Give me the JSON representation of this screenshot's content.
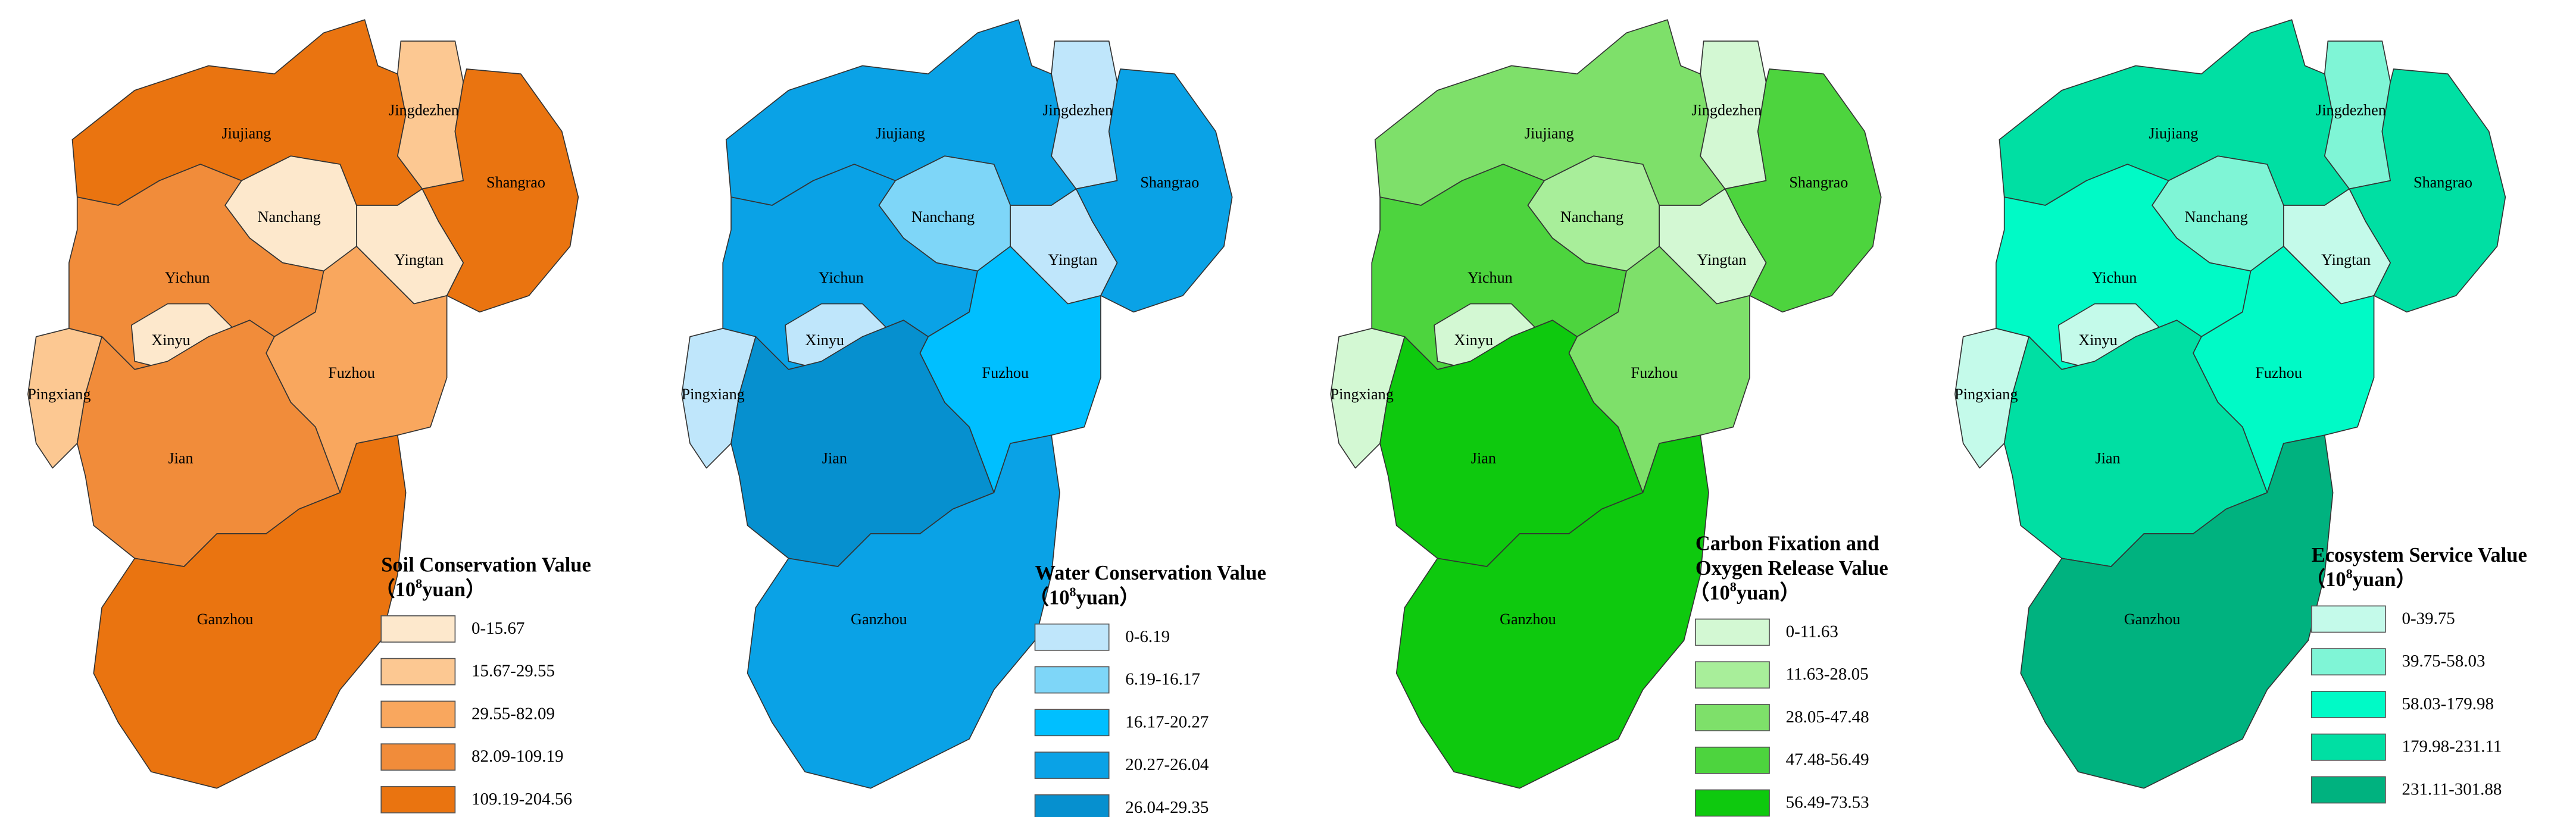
{
  "maps": [
    {
      "title": [
        "Soil Conservation Value"
      ],
      "unit_prefix": "（10",
      "unit_exp": "8",
      "unit_suffix": "yuan）",
      "legend": [
        {
          "label": "0-15.67",
          "color": "#fde8cc"
        },
        {
          "label": "15.67-29.55",
          "color": "#fcc892"
        },
        {
          "label": "29.55-82.09",
          "color": "#f9a75e"
        },
        {
          "label": "82.09-109.19",
          "color": "#f18c3a"
        },
        {
          "label": "109.19-204.56",
          "color": "#ea7410"
        }
      ],
      "regions": [
        {
          "name": "Jiujiang",
          "color": "#ea7410"
        },
        {
          "name": "Jingdezhen",
          "color": "#fcc892"
        },
        {
          "name": "Shangrao",
          "color": "#ea7410"
        },
        {
          "name": "Nanchang",
          "color": "#fde8cc"
        },
        {
          "name": "Yingtan",
          "color": "#fde8cc"
        },
        {
          "name": "Yichun",
          "color": "#f18c3a"
        },
        {
          "name": "Xinyu",
          "color": "#fde8cc"
        },
        {
          "name": "Pingxiang",
          "color": "#fcc892"
        },
        {
          "name": "Fuzhou",
          "color": "#f9a75e"
        },
        {
          "name": "Jian",
          "color": "#f18c3a"
        },
        {
          "name": "Ganzhou",
          "color": "#ea7410"
        }
      ]
    },
    {
      "title": [
        "Water Conservation Value"
      ],
      "unit_prefix": "（10",
      "unit_exp": "8",
      "unit_suffix": "yuan）",
      "legend": [
        {
          "label": "0-6.19",
          "color": "#bfe6fb"
        },
        {
          "label": "6.19-16.17",
          "color": "#7ed6f8"
        },
        {
          "label": "16.17-20.27",
          "color": "#00bfff"
        },
        {
          "label": "20.27-26.04",
          "color": "#0aa2e6"
        },
        {
          "label": "26.04-29.35",
          "color": "#0690cf"
        }
      ],
      "regions": [
        {
          "name": "Jiujiang",
          "color": "#0aa2e6"
        },
        {
          "name": "Jingdezhen",
          "color": "#bfe6fb"
        },
        {
          "name": "Shangrao",
          "color": "#0aa2e6"
        },
        {
          "name": "Nanchang",
          "color": "#7ed6f8"
        },
        {
          "name": "Yingtan",
          "color": "#bfe6fb"
        },
        {
          "name": "Yichun",
          "color": "#0aa2e6"
        },
        {
          "name": "Xinyu",
          "color": "#bfe6fb"
        },
        {
          "name": "Pingxiang",
          "color": "#bfe6fb"
        },
        {
          "name": "Fuzhou",
          "color": "#00bfff"
        },
        {
          "name": "Jian",
          "color": "#0690cf"
        },
        {
          "name": "Ganzhou",
          "color": "#0aa2e6"
        }
      ]
    },
    {
      "title": [
        "Carbon Fixation and",
        "Oxygen Release Value"
      ],
      "unit_prefix": "（10",
      "unit_exp": "8",
      "unit_suffix": "yuan）",
      "legend": [
        {
          "label": "0-11.63",
          "color": "#d3f8d3"
        },
        {
          "label": "11.63-28.05",
          "color": "#a8ee9a"
        },
        {
          "label": "28.05-47.48",
          "color": "#7ee06a"
        },
        {
          "label": "47.48-56.49",
          "color": "#4dd43e"
        },
        {
          "label": "56.49-73.53",
          "color": "#0ec90e"
        }
      ],
      "regions": [
        {
          "name": "Jiujiang",
          "color": "#7ee06a"
        },
        {
          "name": "Jingdezhen",
          "color": "#d3f8d3"
        },
        {
          "name": "Shangrao",
          "color": "#4dd43e"
        },
        {
          "name": "Nanchang",
          "color": "#a8ee9a"
        },
        {
          "name": "Yingtan",
          "color": "#d3f8d3"
        },
        {
          "name": "Yichun",
          "color": "#4dd43e"
        },
        {
          "name": "Xinyu",
          "color": "#d3f8d3"
        },
        {
          "name": "Pingxiang",
          "color": "#d3f8d3"
        },
        {
          "name": "Fuzhou",
          "color": "#7ee06a"
        },
        {
          "name": "Jian",
          "color": "#0ec90e"
        },
        {
          "name": "Ganzhou",
          "color": "#0ec90e"
        }
      ]
    },
    {
      "title": [
        "Ecosystem Service Value"
      ],
      "unit_prefix": "（10",
      "unit_exp": "8",
      "unit_suffix": "yuan）",
      "legend": [
        {
          "label": "0-39.75",
          "color": "#c4faea"
        },
        {
          "label": "39.75-58.03",
          "color": "#7ff5d6"
        },
        {
          "label": "58.03-179.98",
          "color": "#00fac6"
        },
        {
          "label": "179.98-231.11",
          "color": "#00dfa3"
        },
        {
          "label": "231.11-301.88",
          "color": "#00b27f"
        }
      ],
      "regions": [
        {
          "name": "Jiujiang",
          "color": "#00dfa3"
        },
        {
          "name": "Jingdezhen",
          "color": "#7ff5d6"
        },
        {
          "name": "Shangrao",
          "color": "#00dfa3"
        },
        {
          "name": "Nanchang",
          "color": "#7ff5d6"
        },
        {
          "name": "Yingtan",
          "color": "#c4faea"
        },
        {
          "name": "Yichun",
          "color": "#00fac6"
        },
        {
          "name": "Xinyu",
          "color": "#c4faea"
        },
        {
          "name": "Pingxiang",
          "color": "#c4faea"
        },
        {
          "name": "Fuzhou",
          "color": "#00fac6"
        },
        {
          "name": "Jian",
          "color": "#00dfa3"
        },
        {
          "name": "Ganzhou",
          "color": "#00b27f"
        }
      ]
    }
  ]
}
